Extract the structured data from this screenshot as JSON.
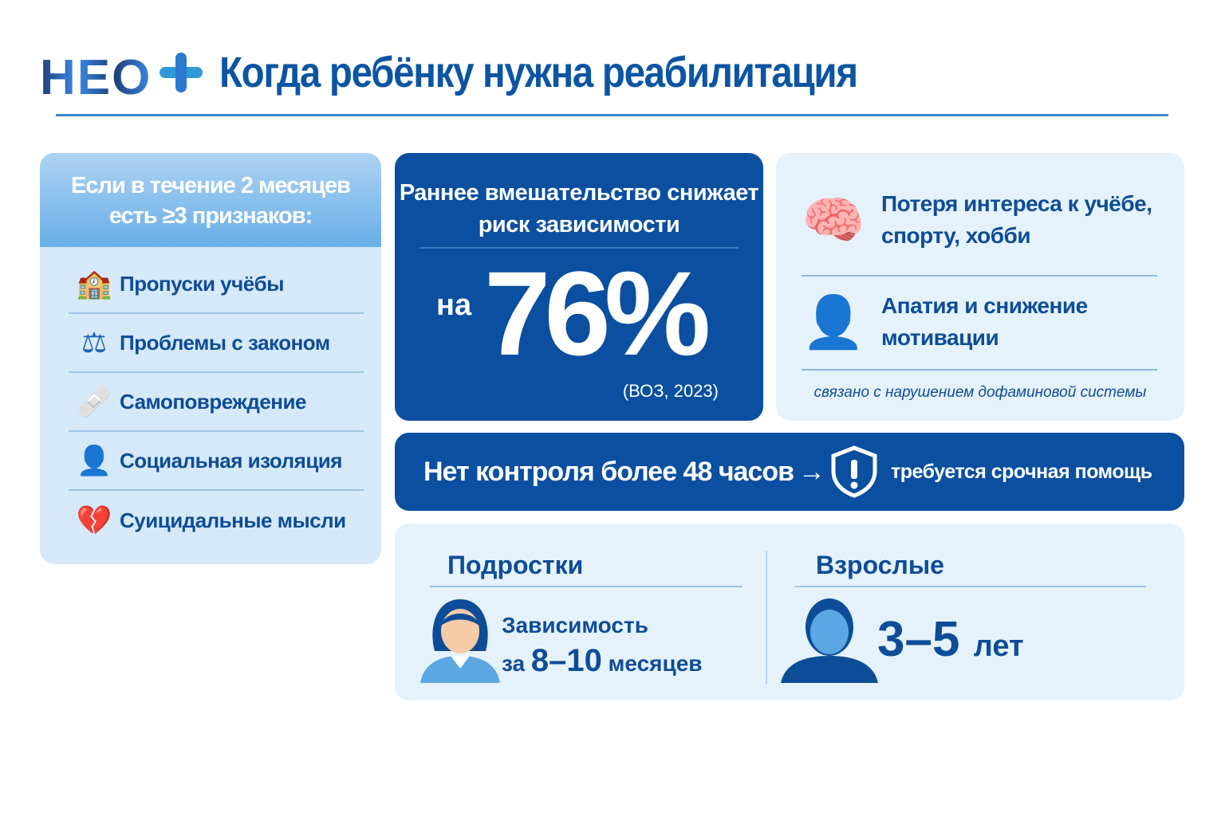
{
  "header": {
    "logo": "НЕО",
    "title": "Когда ребёнку нужна реабилитация"
  },
  "signs": {
    "heading": "Если в течение 2 месяцев есть ≥3 признаков:",
    "items": [
      {
        "icon": "school-icon",
        "label": "Пропуски учёбы"
      },
      {
        "icon": "gavel-icon",
        "label": "Проблемы с законом"
      },
      {
        "icon": "bandage-icon",
        "label": "Самоповреждение"
      },
      {
        "icon": "person-icon",
        "label": "Социальная изоляция"
      },
      {
        "icon": "broken-heart-icon",
        "label": "Суицидальные мысли"
      }
    ]
  },
  "stat": {
    "heading": "Раннее вмешательство снижает риск зависимости",
    "prefix": "на",
    "value": "76%",
    "source": "(ВОЗ, 2023)"
  },
  "symptoms": {
    "items": [
      {
        "icon": "brain-icon",
        "label": "Потеря интереса к учёбе, спорту, хобби"
      },
      {
        "icon": "apathy-icon",
        "label": "Апатия и снижение мотивации"
      }
    ],
    "note": "связано с нарушением дофаминовой системы"
  },
  "alert": {
    "text": "Нет контроля более 48 часов",
    "arrow": "→",
    "icon": "shield-alert-icon",
    "action": "требуется срочная помощь"
  },
  "timeline": {
    "teens": {
      "label": "Подростки",
      "line1": "Зависимость",
      "prefix": "за",
      "value": "8–10",
      "unit": "месяцев"
    },
    "adults": {
      "label": "Взрослые",
      "value": "3–5",
      "unit": "лет"
    }
  },
  "colors": {
    "primary": "#0a4fa0",
    "light": "#e6f2fb",
    "accent": "#3a8ae6"
  }
}
